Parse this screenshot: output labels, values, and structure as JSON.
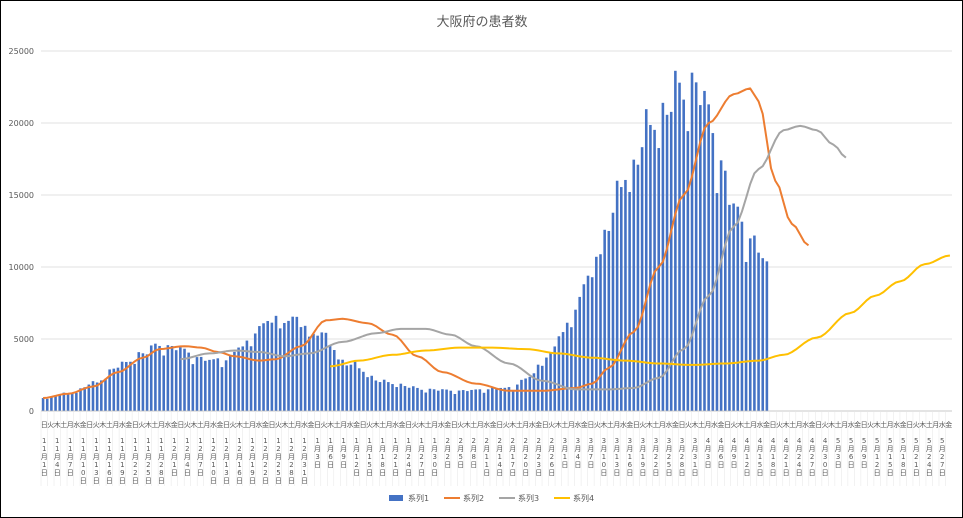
{
  "chart_data": {
    "type": "bar",
    "title": "大阪府の患者数",
    "ylim": [
      0,
      25000
    ],
    "yticks": [
      0,
      5000,
      10000,
      15000,
      20000,
      25000
    ],
    "grid": true,
    "legend_position": "bottom",
    "x_ticks": [
      {
        "day": "日",
        "date": "11月1日"
      },
      {
        "day": "火",
        "date": ""
      },
      {
        "day": "木",
        "date": "11月4日"
      },
      {
        "day": "土",
        "date": ""
      },
      {
        "day": "月",
        "date": "11月7日"
      },
      {
        "day": "水",
        "date": ""
      },
      {
        "day": "金",
        "date": "11月10日"
      },
      {
        "day": "日",
        "date": ""
      },
      {
        "day": "火",
        "date": "11月13日"
      },
      {
        "day": "木",
        "date": ""
      },
      {
        "day": "土",
        "date": "11月16日"
      },
      {
        "day": "月",
        "date": ""
      },
      {
        "day": "水",
        "date": "11月19日"
      },
      {
        "day": "金",
        "date": ""
      },
      {
        "day": "日",
        "date": "11月22日"
      },
      {
        "day": "火",
        "date": ""
      },
      {
        "day": "木",
        "date": "11月25日"
      },
      {
        "day": "土",
        "date": ""
      },
      {
        "day": "月",
        "date": "11月28日"
      },
      {
        "day": "水",
        "date": ""
      },
      {
        "day": "金",
        "date": "12月1日"
      },
      {
        "day": "日",
        "date": ""
      },
      {
        "day": "火",
        "date": "12月4日"
      },
      {
        "day": "木",
        "date": ""
      },
      {
        "day": "土",
        "date": "12月7日"
      },
      {
        "day": "月",
        "date": ""
      },
      {
        "day": "水",
        "date": "12月10日"
      },
      {
        "day": "金",
        "date": ""
      },
      {
        "day": "日",
        "date": "12月13日"
      },
      {
        "day": "火",
        "date": ""
      },
      {
        "day": "木",
        "date": "12月16日"
      },
      {
        "day": "土",
        "date": ""
      },
      {
        "day": "月",
        "date": "12月19日"
      },
      {
        "day": "水",
        "date": ""
      },
      {
        "day": "金",
        "date": "12月22日"
      },
      {
        "day": "日",
        "date": ""
      },
      {
        "day": "火",
        "date": "12月25日"
      },
      {
        "day": "木",
        "date": ""
      },
      {
        "day": "土",
        "date": "12月28日"
      },
      {
        "day": "月",
        "date": ""
      },
      {
        "day": "水",
        "date": "12月31日"
      },
      {
        "day": "金",
        "date": ""
      },
      {
        "day": "日",
        "date": "1月3日"
      },
      {
        "day": "火",
        "date": ""
      },
      {
        "day": "木",
        "date": "1月6日"
      },
      {
        "day": "土",
        "date": ""
      },
      {
        "day": "月",
        "date": "1月9日"
      },
      {
        "day": "水",
        "date": ""
      },
      {
        "day": "金",
        "date": "1月12日"
      },
      {
        "day": "日",
        "date": ""
      },
      {
        "day": "火",
        "date": "1月15日"
      },
      {
        "day": "木",
        "date": ""
      },
      {
        "day": "土",
        "date": "1月18日"
      },
      {
        "day": "月",
        "date": ""
      },
      {
        "day": "水",
        "date": "1月21日"
      },
      {
        "day": "金",
        "date": ""
      },
      {
        "day": "日",
        "date": "1月24日"
      },
      {
        "day": "火",
        "date": ""
      },
      {
        "day": "木",
        "date": "1月27日"
      },
      {
        "day": "土",
        "date": ""
      },
      {
        "day": "月",
        "date": "1月30日"
      },
      {
        "day": "水",
        "date": ""
      },
      {
        "day": "金",
        "date": "2月2日"
      },
      {
        "day": "日",
        "date": ""
      },
      {
        "day": "火",
        "date": "2月5日"
      },
      {
        "day": "木",
        "date": ""
      },
      {
        "day": "土",
        "date": "2月8日"
      },
      {
        "day": "月",
        "date": ""
      },
      {
        "day": "水",
        "date": "2月11日"
      },
      {
        "day": "金",
        "date": ""
      },
      {
        "day": "日",
        "date": "2月14日"
      },
      {
        "day": "火",
        "date": ""
      },
      {
        "day": "木",
        "date": "2月17日"
      },
      {
        "day": "土",
        "date": ""
      },
      {
        "day": "月",
        "date": "2月20日"
      },
      {
        "day": "水",
        "date": ""
      },
      {
        "day": "金",
        "date": "2月23日"
      },
      {
        "day": "日",
        "date": ""
      },
      {
        "day": "火",
        "date": "2月26日"
      },
      {
        "day": "木",
        "date": ""
      },
      {
        "day": "土",
        "date": "3月1日"
      },
      {
        "day": "月",
        "date": ""
      },
      {
        "day": "水",
        "date": "3月4日"
      },
      {
        "day": "金",
        "date": ""
      },
      {
        "day": "日",
        "date": "3月7日"
      },
      {
        "day": "火",
        "date": ""
      },
      {
        "day": "木",
        "date": "3月10日"
      },
      {
        "day": "土",
        "date": ""
      },
      {
        "day": "月",
        "date": "3月13日"
      },
      {
        "day": "水",
        "date": ""
      },
      {
        "day": "金",
        "date": "3月16日"
      },
      {
        "day": "日",
        "date": ""
      },
      {
        "day": "火",
        "date": "3月19日"
      },
      {
        "day": "木",
        "date": ""
      },
      {
        "day": "土",
        "date": "3月22日"
      },
      {
        "day": "月",
        "date": ""
      },
      {
        "day": "水",
        "date": "3月25日"
      },
      {
        "day": "金",
        "date": ""
      },
      {
        "day": "日",
        "date": "3月28日"
      },
      {
        "day": "火",
        "date": ""
      },
      {
        "day": "木",
        "date": "3月31日"
      },
      {
        "day": "土",
        "date": ""
      },
      {
        "day": "月",
        "date": "4月3日"
      },
      {
        "day": "水",
        "date": ""
      },
      {
        "day": "金",
        "date": "4月6日"
      },
      {
        "day": "日",
        "date": ""
      },
      {
        "day": "火",
        "date": "4月9日"
      },
      {
        "day": "木",
        "date": ""
      },
      {
        "day": "土",
        "date": "4月12日"
      },
      {
        "day": "月",
        "date": ""
      },
      {
        "day": "水",
        "date": "4月15日"
      },
      {
        "day": "金",
        "date": ""
      },
      {
        "day": "日",
        "date": "4月18日"
      },
      {
        "day": "火",
        "date": ""
      },
      {
        "day": "木",
        "date": "4月21日"
      },
      {
        "day": "土",
        "date": ""
      },
      {
        "day": "月",
        "date": "4月24日"
      },
      {
        "day": "水",
        "date": ""
      },
      {
        "day": "金",
        "date": "4月27日"
      },
      {
        "day": "日",
        "date": ""
      },
      {
        "day": "火",
        "date": "4月30日"
      },
      {
        "day": "木",
        "date": ""
      },
      {
        "day": "土",
        "date": "5月3日"
      },
      {
        "day": "月",
        "date": ""
      },
      {
        "day": "水",
        "date": "5月6日"
      },
      {
        "day": "金",
        "date": ""
      },
      {
        "day": "日",
        "date": "5月9日"
      },
      {
        "day": "火",
        "date": ""
      },
      {
        "day": "木",
        "date": "5月12日"
      },
      {
        "day": "土",
        "date": ""
      },
      {
        "day": "月",
        "date": "5月15日"
      },
      {
        "day": "水",
        "date": ""
      },
      {
        "day": "金",
        "date": "5月18日"
      },
      {
        "day": "日",
        "date": ""
      },
      {
        "day": "火",
        "date": "5月21日"
      },
      {
        "day": "木",
        "date": ""
      },
      {
        "day": "土",
        "date": "5月24日"
      },
      {
        "day": "月",
        "date": ""
      },
      {
        "day": "水",
        "date": "5月27日"
      },
      {
        "day": "金",
        "date": ""
      }
    ],
    "series": [
      {
        "name": "系列1",
        "type": "bar",
        "color": "#4472C4",
        "keypoints": [
          [
            0,
            900
          ],
          [
            6,
            1200
          ],
          [
            12,
            1900
          ],
          [
            18,
            3100
          ],
          [
            24,
            4000
          ],
          [
            28,
            4600
          ],
          [
            31,
            4400
          ],
          [
            40,
            3500
          ],
          [
            44,
            3600
          ],
          [
            48,
            4500
          ],
          [
            52,
            5800
          ],
          [
            56,
            6400
          ],
          [
            60,
            6300
          ],
          [
            66,
            5400
          ],
          [
            74,
            3200
          ],
          [
            82,
            2000
          ],
          [
            92,
            1500
          ],
          [
            100,
            1400
          ],
          [
            112,
            1600
          ],
          [
            116,
            2200
          ],
          [
            122,
            4000
          ],
          [
            126,
            6000
          ],
          [
            130,
            8500
          ],
          [
            136,
            13000
          ],
          [
            140,
            16500
          ],
          [
            148,
            20500
          ],
          [
            154,
            22400
          ],
          [
            157,
            22700
          ],
          [
            160,
            20500
          ],
          [
            163,
            17000
          ],
          [
            166,
            14000
          ],
          [
            170,
            12000
          ],
          [
            174,
            10200
          ]
        ]
      },
      {
        "name": "系列2",
        "type": "line",
        "color": "#ED7D31",
        "keypoints": [
          [
            0,
            900
          ],
          [
            6,
            1200
          ],
          [
            12,
            1700
          ],
          [
            18,
            2700
          ],
          [
            24,
            3700
          ],
          [
            28,
            4300
          ],
          [
            34,
            4500
          ],
          [
            38,
            4400
          ],
          [
            42,
            4100
          ],
          [
            46,
            3800
          ],
          [
            52,
            3500
          ],
          [
            56,
            3600
          ],
          [
            62,
            4500
          ],
          [
            68,
            6300
          ],
          [
            72,
            6400
          ],
          [
            78,
            6100
          ],
          [
            84,
            5300
          ],
          [
            90,
            3800
          ],
          [
            96,
            2700
          ],
          [
            104,
            1900
          ],
          [
            112,
            1400
          ],
          [
            120,
            1400
          ],
          [
            128,
            1600
          ],
          [
            132,
            1900
          ],
          [
            136,
            3000
          ],
          [
            142,
            5500
          ],
          [
            148,
            10000
          ],
          [
            154,
            15000
          ],
          [
            160,
            20000
          ],
          [
            166,
            22000
          ],
          [
            170,
            22400
          ],
          [
            172,
            21500
          ],
          [
            176,
            16000
          ],
          [
            180,
            13000
          ],
          [
            184,
            11500
          ]
        ]
      },
      {
        "name": "系列3",
        "type": "line",
        "color": "#A5A5A5",
        "keypoints": [
          [
            33,
            3600
          ],
          [
            40,
            4000
          ],
          [
            46,
            4200
          ],
          [
            52,
            4100
          ],
          [
            58,
            3800
          ],
          [
            64,
            4000
          ],
          [
            72,
            4800
          ],
          [
            80,
            5400
          ],
          [
            86,
            5700
          ],
          [
            92,
            5700
          ],
          [
            98,
            5300
          ],
          [
            104,
            4500
          ],
          [
            112,
            3300
          ],
          [
            120,
            2100
          ],
          [
            128,
            1500
          ],
          [
            136,
            1500
          ],
          [
            142,
            1600
          ],
          [
            148,
            2300
          ],
          [
            154,
            4300
          ],
          [
            160,
            8000
          ],
          [
            166,
            12800
          ],
          [
            172,
            16800
          ],
          [
            178,
            19500
          ],
          [
            182,
            19800
          ],
          [
            186,
            19500
          ],
          [
            190,
            18500
          ],
          [
            193,
            17600
          ]
        ]
      },
      {
        "name": "系列4",
        "type": "line",
        "color": "#FFC000",
        "keypoints": [
          [
            69,
            3100
          ],
          [
            76,
            3500
          ],
          [
            84,
            3900
          ],
          [
            92,
            4200
          ],
          [
            100,
            4400
          ],
          [
            108,
            4400
          ],
          [
            116,
            4300
          ],
          [
            124,
            4000
          ],
          [
            132,
            3700
          ],
          [
            140,
            3500
          ],
          [
            148,
            3300
          ],
          [
            156,
            3200
          ],
          [
            164,
            3300
          ],
          [
            172,
            3500
          ],
          [
            178,
            3900
          ],
          [
            186,
            5100
          ],
          [
            194,
            6800
          ],
          [
            200,
            8000
          ],
          [
            206,
            9000
          ],
          [
            212,
            10200
          ],
          [
            218,
            10800
          ]
        ]
      }
    ]
  }
}
